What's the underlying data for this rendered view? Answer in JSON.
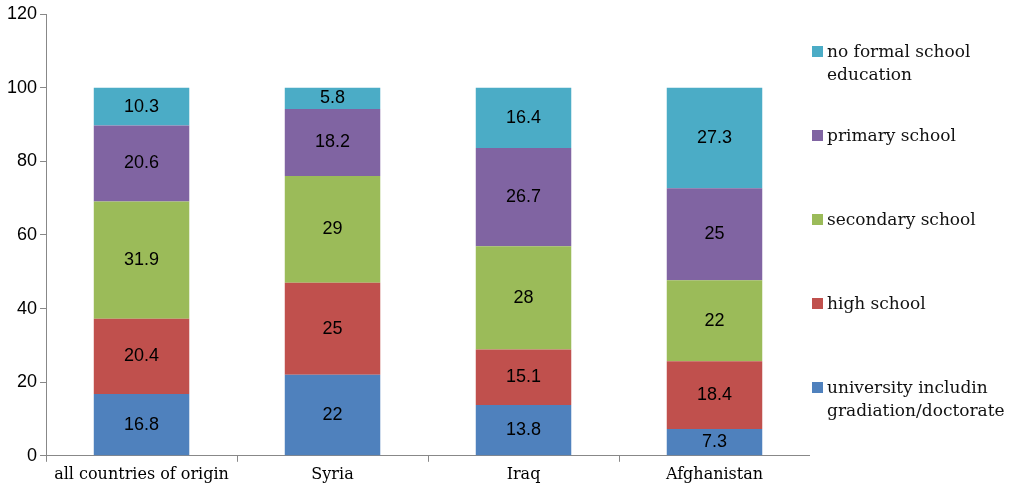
{
  "chart_data": {
    "type": "bar",
    "stacked": true,
    "categories": [
      "all countries of origin",
      "Syria",
      "Iraq",
      "Afghanistan"
    ],
    "series": [
      {
        "name": "university includin gradiation/doctorate",
        "color": "#4f81bd",
        "values": [
          16.8,
          22,
          13.8,
          7.3
        ]
      },
      {
        "name": "high school",
        "color": "#c0504d",
        "values": [
          20.4,
          25,
          15.1,
          18.4
        ]
      },
      {
        "name": "secondary school",
        "color": "#9bbb59",
        "values": [
          31.9,
          29,
          28,
          22
        ]
      },
      {
        "name": "primary school",
        "color": "#8064a2",
        "values": [
          20.6,
          18.2,
          26.7,
          25
        ]
      },
      {
        "name": "no formal school education",
        "color": "#4bacc6",
        "values": [
          10.3,
          5.8,
          16.4,
          27.3
        ]
      }
    ],
    "ylim": [
      0,
      120
    ],
    "yticks": [
      0,
      20,
      40,
      60,
      80,
      100,
      120
    ],
    "grid": false,
    "legend": "right",
    "data_labels": true
  }
}
